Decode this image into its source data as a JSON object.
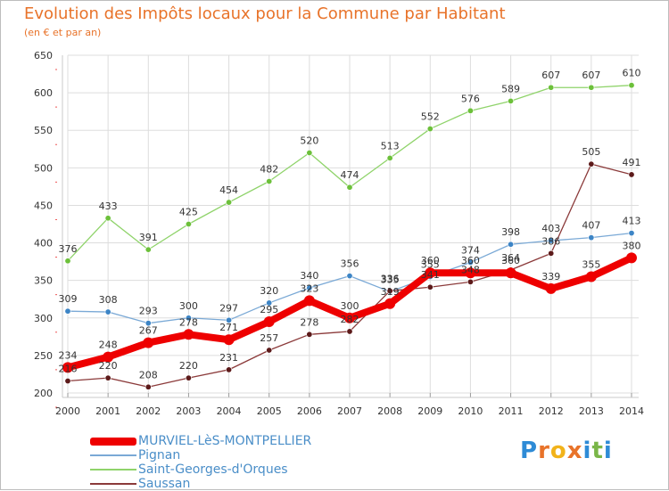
{
  "page": {
    "title": "Evolution des Impôts locaux pour la Commune par Habitant",
    "subtitle": "(en € et par an)"
  },
  "colors": {
    "title": "#e8732a",
    "axis_text": "#333333",
    "legend_text": "#4a8ec8",
    "gridline": "#dddddd"
  },
  "logo": {
    "text": "Proxiti"
  },
  "chart_data": {
    "type": "line",
    "x": [
      "2000",
      "2001",
      "2002",
      "2003",
      "2004",
      "2005",
      "2006",
      "2007",
      "2008",
      "2009",
      "2010",
      "2011",
      "2012",
      "2013",
      "2014"
    ],
    "ylim": [
      200,
      650
    ],
    "yticks": [
      200,
      250,
      300,
      350,
      400,
      450,
      500,
      550,
      600,
      650
    ],
    "grid": true,
    "legend_position": "bottom-left",
    "series": [
      {
        "name": "MURVIEL-LèS-MONTPELLIER",
        "color": "#ee0000",
        "marker_color": "#ee0000",
        "thick": true,
        "values": [
          234,
          248,
          267,
          278,
          271,
          295,
          323,
          300,
          319,
          360,
          360,
          360,
          339,
          355,
          380
        ],
        "labels": [
          "234",
          "248",
          "267",
          "278",
          "271",
          "295",
          "323",
          "300",
          "319",
          "360",
          "360",
          "360",
          "339",
          "355",
          "380"
        ]
      },
      {
        "name": "Pignan",
        "color": "#7aa9d6",
        "marker_color": "#3d85c6",
        "thick": false,
        "values": [
          309,
          308,
          293,
          300,
          297,
          320,
          340,
          356,
          335,
          355,
          374,
          398,
          403,
          407,
          413
        ],
        "labels": [
          "309",
          "308",
          "293",
          "300",
          "297",
          "320",
          "340",
          "356",
          "335",
          "355",
          "374",
          "398",
          "403",
          "407",
          "413"
        ]
      },
      {
        "name": "Saint-Georges-d'Orques",
        "color": "#8fd36a",
        "marker_color": "#6cc03a",
        "thick": false,
        "values": [
          376,
          433,
          391,
          425,
          454,
          482,
          520,
          474,
          513,
          552,
          576,
          589,
          607,
          607,
          610
        ],
        "labels": [
          "376",
          "433",
          "391",
          "425",
          "454",
          "482",
          "520",
          "474",
          "513",
          "552",
          "576",
          "589",
          "607",
          "607",
          "610"
        ]
      },
      {
        "name": "Saussan",
        "color": "#8b3a3a",
        "marker_color": "#5c1a1a",
        "thick": false,
        "values": [
          216,
          220,
          208,
          220,
          231,
          257,
          278,
          282,
          336,
          341,
          348,
          364,
          386,
          505,
          491
        ],
        "labels": [
          "216",
          "220",
          "208",
          "220",
          "231",
          "257",
          "278",
          "282",
          "336",
          "341",
          "348",
          "364",
          "386",
          "505",
          "491"
        ]
      }
    ]
  }
}
